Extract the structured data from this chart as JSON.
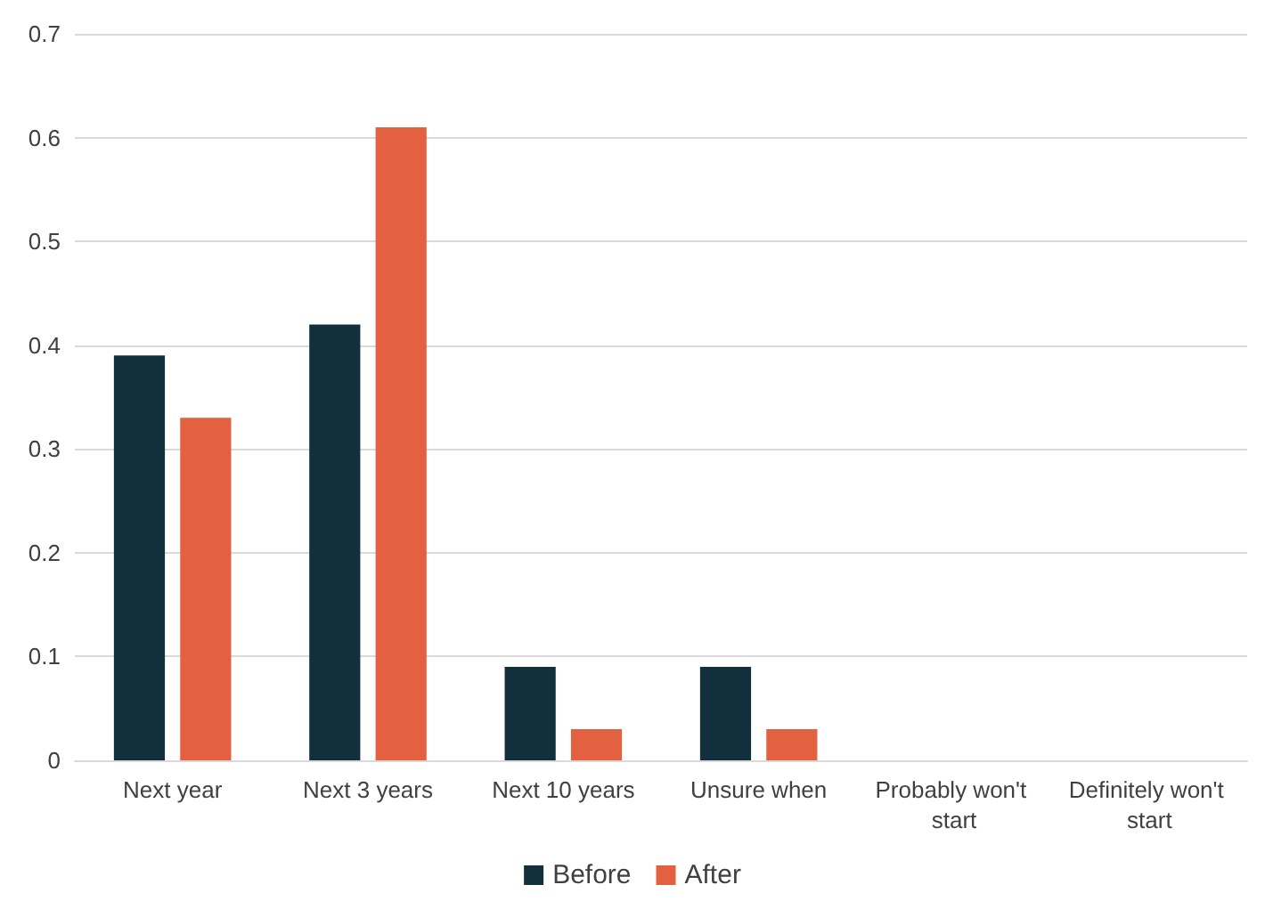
{
  "chart_data": {
    "type": "bar",
    "categories": [
      "Next year",
      "Next 3 years",
      "Next 10 years",
      "Unsure when",
      "Probably won't start",
      "Definitely won't start"
    ],
    "series": [
      {
        "name": "Before",
        "color": "#122f3d",
        "values": [
          0.39,
          0.42,
          0.09,
          0.09,
          0,
          0
        ]
      },
      {
        "name": "After",
        "color": "#e36041",
        "values": [
          0.33,
          0.61,
          0.03,
          0.03,
          0,
          0
        ]
      }
    ],
    "ylim": [
      0,
      0.7
    ],
    "yticks": [
      0,
      0.1,
      0.2,
      0.3,
      0.4,
      0.5,
      0.6,
      0.7
    ],
    "grid": "y",
    "legend": "bottom"
  }
}
